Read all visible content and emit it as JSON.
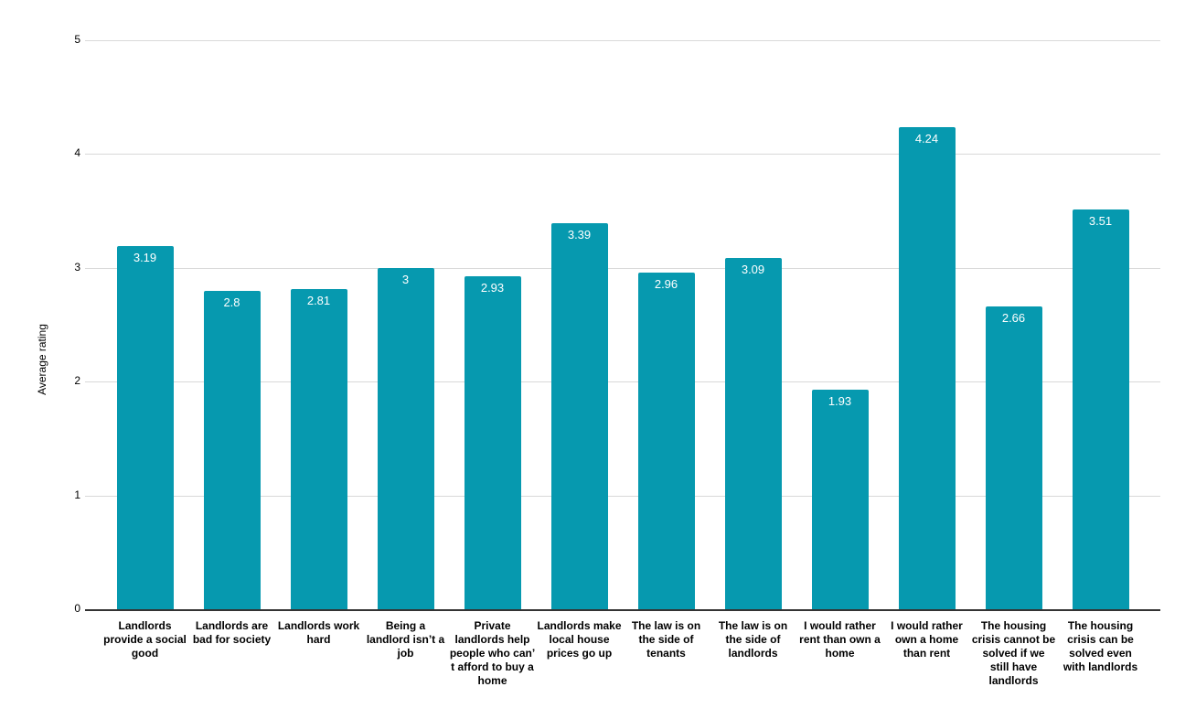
{
  "chart_data": {
    "type": "bar",
    "title": "",
    "xlabel": "",
    "ylabel": "Average rating",
    "ylim": [
      0,
      5
    ],
    "yticks": [
      0,
      1,
      2,
      3,
      4,
      5
    ],
    "grid": true,
    "legend": "none",
    "background_color": "#ffffff",
    "bar_color": "#0699af",
    "gridline_color": "#d9d9d9",
    "baseline_color": "#333333",
    "tick_label_color": "#000000",
    "category_label_color": "#000000",
    "value_label_color": "#ffffff",
    "categories": [
      "Landlords provide a social good",
      "Landlords are bad for society",
      "Landlords work hard",
      "Being a landlord isn’t a job",
      "Private landlords help people who can’t afford to buy a home",
      "Landlords make local house prices go up",
      "The law is on the side of tenants",
      "The law is on the side of landlords",
      "I would rather rent than own a home",
      "I would rather own a home than rent",
      "The housing crisis cannot be solved if we still have landlords",
      "The housing crisis can be solved even with landlords"
    ],
    "categories_wrapped": [
      "Landlords\nprovide a social\ngood",
      "Landlords are\nbad for society",
      "Landlords work\nhard",
      "Being a\nlandlord isn’t a\njob",
      "Private\nlandlords help\npeople who can’\nt afford to buy a\nhome",
      "Landlords make\nlocal house\nprices go up",
      "The law is on\nthe side of\ntenants",
      "The law is on\nthe side of\nlandlords",
      "I would rather\nrent than own a\nhome",
      "I would rather\nown a home\nthan rent",
      "The housing\ncrisis cannot be\nsolved if we\nstill have\nlandlords",
      "The housing\ncrisis can be\nsolved even\nwith landlords"
    ],
    "values": [
      3.19,
      2.8,
      2.81,
      3,
      2.93,
      3.39,
      2.96,
      3.09,
      1.93,
      4.24,
      2.66,
      3.51
    ],
    "value_labels": [
      "3.19",
      "2.8",
      "2.81",
      "3",
      "2.93",
      "3.39",
      "2.96",
      "3.09",
      "1.93",
      "4.24",
      "2.66",
      "3.51"
    ]
  }
}
